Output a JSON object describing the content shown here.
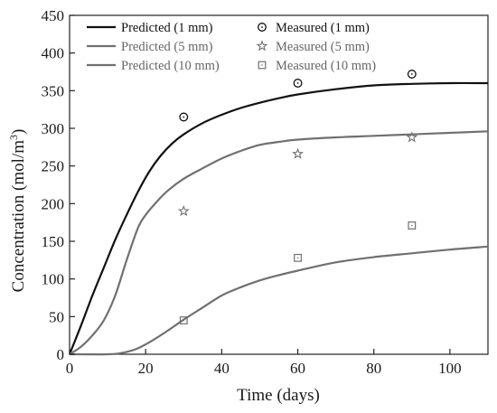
{
  "chart_data": {
    "type": "line",
    "title": "",
    "xlabel": "Time (days)",
    "ylabel_main": "Concentration (mol/m",
    "ylabel_sup": "3",
    "ylabel_close": ")",
    "xlim": [
      0,
      110
    ],
    "ylim": [
      0,
      450
    ],
    "x_ticks": [
      0,
      20,
      40,
      60,
      80,
      100
    ],
    "y_ticks": [
      0,
      50,
      100,
      150,
      200,
      250,
      300,
      350,
      400,
      450
    ],
    "grid": false,
    "legend_position": "top-left",
    "series": [
      {
        "name": "Predicted (1 mm)",
        "kind": "line",
        "color": "#111111",
        "x": [
          0,
          3,
          6,
          9,
          12,
          15,
          18,
          21,
          24,
          27,
          30,
          35,
          40,
          45,
          50,
          55,
          60,
          70,
          80,
          90,
          100,
          110
        ],
        "y": [
          0,
          38,
          78,
          115,
          152,
          185,
          216,
          243,
          264,
          280,
          292,
          307,
          318,
          327,
          334,
          340,
          345,
          352,
          357,
          359,
          360,
          360
        ]
      },
      {
        "name": "Predicted (5 mm)",
        "kind": "line",
        "color": "#707070",
        "x": [
          0,
          3,
          6,
          9,
          12,
          15,
          18,
          20,
          23,
          26,
          30,
          35,
          40,
          45,
          50,
          55,
          60,
          70,
          80,
          90,
          100,
          110
        ],
        "y": [
          0,
          10,
          25,
          45,
          78,
          125,
          168,
          185,
          203,
          218,
          233,
          247,
          260,
          270,
          278,
          282,
          285,
          288,
          290,
          292,
          294,
          296
        ]
      },
      {
        "name": "Predicted (10 mm)",
        "kind": "line",
        "color": "#707070",
        "x": [
          0,
          10,
          14,
          18,
          22,
          26,
          30,
          35,
          40,
          45,
          50,
          55,
          60,
          70,
          80,
          90,
          100,
          110
        ],
        "y": [
          0,
          0,
          2,
          8,
          19,
          32,
          46,
          62,
          78,
          89,
          98,
          105,
          111,
          122,
          129,
          134,
          139,
          143
        ]
      },
      {
        "name": "Measured (1 mm)",
        "kind": "marker",
        "marker": "circle-dot",
        "color": "#111111",
        "x": [
          30,
          60,
          90
        ],
        "y": [
          315,
          360,
          372
        ]
      },
      {
        "name": "Measured (5 mm)",
        "kind": "marker",
        "marker": "star",
        "color": "#707070",
        "x": [
          30,
          60,
          90
        ],
        "y": [
          190,
          266,
          288
        ]
      },
      {
        "name": "Measured (10 mm)",
        "kind": "marker",
        "marker": "square-dot",
        "color": "#707070",
        "x": [
          30,
          60,
          90
        ],
        "y": [
          45,
          128,
          171
        ]
      }
    ]
  }
}
